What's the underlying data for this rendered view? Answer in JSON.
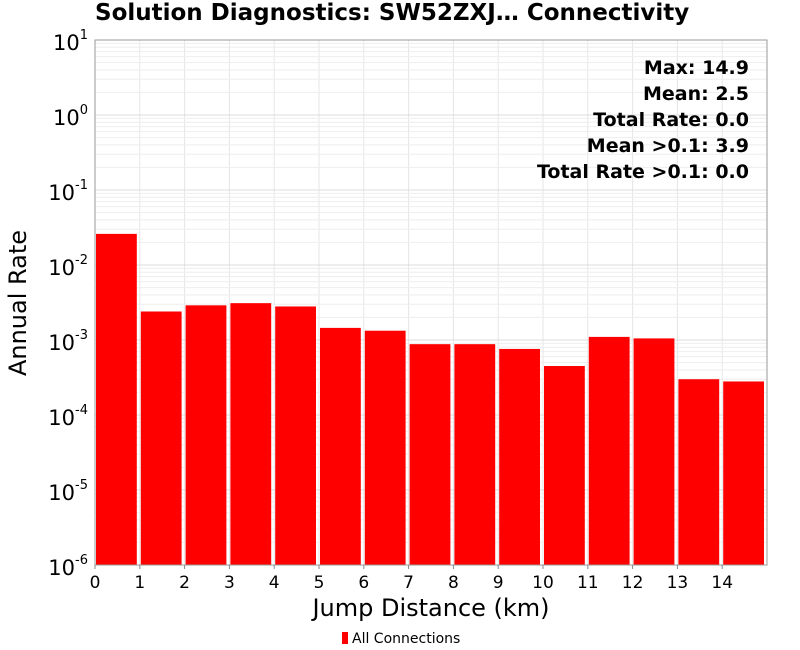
{
  "chart_data": {
    "type": "bar",
    "title": "Solution Diagnostics: SW52ZXJ… Connectivity",
    "xlabel": "Jump Distance (km)",
    "ylabel": "Annual Rate",
    "yscale": "log",
    "ylim": [
      1e-06,
      10
    ],
    "xlim": [
      0,
      15
    ],
    "x_ticks": [
      "0",
      "1",
      "2",
      "3",
      "4",
      "5",
      "6",
      "7",
      "8",
      "9",
      "10",
      "11",
      "12",
      "13",
      "14"
    ],
    "y_ticks": [
      {
        "base": "10",
        "exp": "1",
        "value": 10
      },
      {
        "base": "10",
        "exp": "0",
        "value": 1
      },
      {
        "base": "10",
        "exp": "-1",
        "value": 0.1
      },
      {
        "base": "10",
        "exp": "-2",
        "value": 0.01
      },
      {
        "base": "10",
        "exp": "-3",
        "value": 0.001
      },
      {
        "base": "10",
        "exp": "-4",
        "value": 0.0001
      },
      {
        "base": "10",
        "exp": "-5",
        "value": 1e-05
      },
      {
        "base": "10",
        "exp": "-6",
        "value": 1e-06
      }
    ],
    "grid": true,
    "legend": "bottom",
    "series": [
      {
        "name": "All Connections",
        "color": "#ff0000",
        "bins": [
          {
            "x0": 0,
            "x1": 1,
            "value": 0.026
          },
          {
            "x0": 1,
            "x1": 2,
            "value": 0.0024
          },
          {
            "x0": 2,
            "x1": 3,
            "value": 0.0029
          },
          {
            "x0": 3,
            "x1": 4,
            "value": 0.0031
          },
          {
            "x0": 4,
            "x1": 5,
            "value": 0.0028
          },
          {
            "x0": 5,
            "x1": 6,
            "value": 0.00145
          },
          {
            "x0": 6,
            "x1": 7,
            "value": 0.00133
          },
          {
            "x0": 7,
            "x1": 8,
            "value": 0.00088
          },
          {
            "x0": 8,
            "x1": 9,
            "value": 0.00088
          },
          {
            "x0": 9,
            "x1": 10,
            "value": 0.00076
          },
          {
            "x0": 10,
            "x1": 11,
            "value": 0.00045
          },
          {
            "x0": 11,
            "x1": 12,
            "value": 0.0011
          },
          {
            "x0": 12,
            "x1": 13,
            "value": 0.00105
          },
          {
            "x0": 13,
            "x1": 14,
            "value": 0.0003
          },
          {
            "x0": 14,
            "x1": 15,
            "value": 0.00028
          }
        ]
      }
    ],
    "annotations": [
      "Max: 14.9",
      "Mean: 2.5",
      "Total Rate: 0.0",
      "Mean >0.1: 3.9",
      "Total Rate >0.1: 0.0"
    ]
  },
  "legend": {
    "label": "All Connections",
    "color": "#ff0000"
  }
}
